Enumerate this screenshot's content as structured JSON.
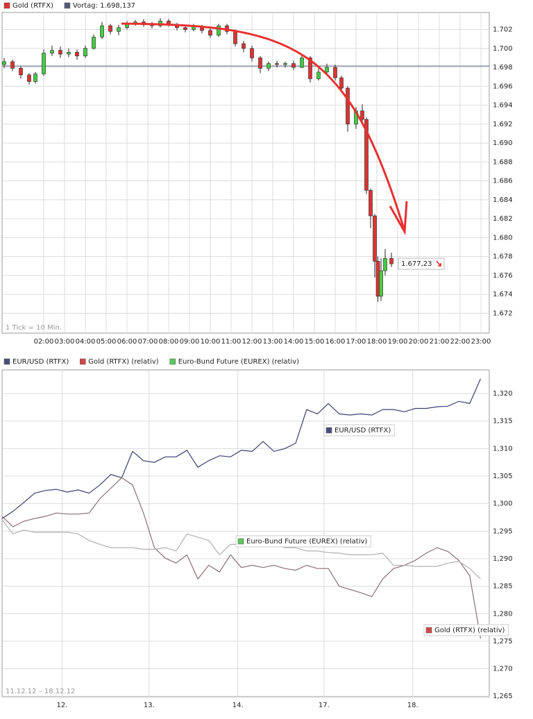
{
  "chart_data": [
    {
      "type": "candlestick",
      "series": [
        {
          "name": "Gold (RTFX)",
          "color": "#dd3333",
          "up_color": "#44cc44",
          "down_color": "#dd3333",
          "x": [
            0.1,
            0.5,
            0.9,
            1.3,
            1.6,
            2.0,
            2.4,
            2.8,
            3.2,
            3.6,
            4.0,
            4.4,
            4.8,
            5.2,
            5.6,
            6.0,
            6.4,
            6.8,
            7.2,
            7.6,
            8.0,
            8.4,
            8.8,
            9.2,
            9.6,
            10.0,
            10.4,
            10.8,
            11.2,
            11.6,
            12.0,
            12.4,
            12.8,
            13.2,
            13.6,
            14.0,
            14.4,
            14.8,
            15.2,
            15.6,
            16.0,
            16.3,
            16.6,
            17.0,
            17.3,
            17.5,
            17.7,
            17.9,
            18.05,
            18.2,
            18.4,
            18.7
          ],
          "open": [
            1698.3,
            1698.6,
            1697.9,
            1697.2,
            1696.5,
            1697.3,
            1699.5,
            1699.8,
            1699.4,
            1699.6,
            1699.2,
            1700.0,
            1701.2,
            1702.4,
            1701.8,
            1702.2,
            1702.6,
            1702.8,
            1702.5,
            1702.4,
            1702.9,
            1702.5,
            1702.2,
            1702.0,
            1702.3,
            1701.9,
            1701.4,
            1702.4,
            1701.8,
            1700.5,
            1700.0,
            1699.0,
            1697.9,
            1698.4,
            1698.3,
            1698.4,
            1698.0,
            1699.0,
            1696.8,
            1697.5,
            1698.0,
            1696.9,
            1695.8,
            1692.0,
            1693.4,
            1692.5,
            1685.0,
            1682.3,
            1677.5,
            1673.8,
            1676.5,
            1677.8
          ],
          "high": [
            1699.0,
            1698.8,
            1698.1,
            1697.4,
            1697.5,
            1699.9,
            1700.3,
            1700.2,
            1700.0,
            1699.9,
            1700.3,
            1701.5,
            1702.8,
            1702.6,
            1702.5,
            1702.9,
            1703.0,
            1703.1,
            1702.8,
            1703.2,
            1703.1,
            1702.7,
            1702.5,
            1702.6,
            1702.5,
            1702.2,
            1702.6,
            1702.6,
            1702.0,
            1700.8,
            1700.3,
            1699.2,
            1698.6,
            1698.7,
            1698.6,
            1698.7,
            1699.3,
            1699.2,
            1697.9,
            1698.4,
            1698.3,
            1697.1,
            1696.0,
            1693.8,
            1694.1,
            1692.7,
            1685.2,
            1682.5,
            1678.0,
            1677.8,
            1678.8,
            1678.4
          ],
          "low": [
            1697.9,
            1697.6,
            1696.8,
            1696.2,
            1696.3,
            1697.1,
            1699.2,
            1699.0,
            1699.1,
            1698.8,
            1699.0,
            1699.9,
            1701.0,
            1701.5,
            1701.4,
            1702.0,
            1702.4,
            1702.3,
            1702.1,
            1702.2,
            1702.3,
            1701.9,
            1701.7,
            1701.8,
            1701.6,
            1701.1,
            1701.2,
            1701.5,
            1700.2,
            1699.6,
            1698.6,
            1697.4,
            1697.6,
            1698.0,
            1698.0,
            1697.7,
            1697.9,
            1696.4,
            1696.6,
            1697.2,
            1696.6,
            1695.5,
            1691.2,
            1691.5,
            1692.2,
            1684.6,
            1681.0,
            1675.8,
            1673.2,
            1673.3,
            1676.0,
            1676.9
          ],
          "close": [
            1698.6,
            1697.9,
            1697.2,
            1696.5,
            1697.3,
            1699.5,
            1699.8,
            1699.4,
            1699.6,
            1699.2,
            1700.0,
            1701.2,
            1702.4,
            1701.8,
            1702.2,
            1702.6,
            1702.8,
            1702.5,
            1702.4,
            1702.9,
            1702.5,
            1702.2,
            1702.0,
            1702.3,
            1701.9,
            1701.4,
            1702.4,
            1701.8,
            1700.5,
            1700.0,
            1699.0,
            1697.9,
            1698.4,
            1698.3,
            1698.4,
            1698.0,
            1699.0,
            1696.8,
            1697.5,
            1698.0,
            1696.9,
            1695.8,
            1692.0,
            1693.4,
            1692.5,
            1685.0,
            1682.3,
            1677.5,
            1673.8,
            1676.5,
            1677.8,
            1677.23
          ],
          "last_value_label": "1.677,23"
        }
      ],
      "reference": {
        "label": "Vortag: 1.698,137",
        "value": 1698.137,
        "color": "#555a7a"
      },
      "note": "1 Tick = 10 Min.",
      "xlim": [
        0,
        23.4
      ],
      "xticks": [
        {
          "value": 2,
          "label": "02:00"
        },
        {
          "value": 3,
          "label": "03:00"
        },
        {
          "value": 4,
          "label": "04:00"
        },
        {
          "value": 5,
          "label": "05:00"
        },
        {
          "value": 6,
          "label": "06:00"
        },
        {
          "value": 7,
          "label": "07:00"
        },
        {
          "value": 8,
          "label": "08:00"
        },
        {
          "value": 9,
          "label": "09:00"
        },
        {
          "value": 10,
          "label": "10:00"
        },
        {
          "value": 11,
          "label": "11:00"
        },
        {
          "value": 12,
          "label": "12:00"
        },
        {
          "value": 13,
          "label": "13:00"
        },
        {
          "value": 14,
          "label": "14:00"
        },
        {
          "value": 15,
          "label": "15:00"
        },
        {
          "value": 16,
          "label": "16:00"
        },
        {
          "value": 17,
          "label": "17:00"
        },
        {
          "value": 18,
          "label": "18:00"
        },
        {
          "value": 19,
          "label": "19:00"
        },
        {
          "value": 20,
          "label": "20:00"
        },
        {
          "value": 21,
          "label": "21:00"
        },
        {
          "value": 22,
          "label": "22:00"
        },
        {
          "value": 23,
          "label": "23:00"
        }
      ],
      "ylim": [
        1669.9,
        1703.8
      ],
      "yticks": [
        {
          "value": 1672,
          "label": "1.672"
        },
        {
          "value": 1674,
          "label": "1.674"
        },
        {
          "value": 1676,
          "label": "1.676"
        },
        {
          "value": 1678,
          "label": "1.678"
        },
        {
          "value": 1680,
          "label": "1.680"
        },
        {
          "value": 1682,
          "label": "1.682"
        },
        {
          "value": 1684,
          "label": "1.684"
        },
        {
          "value": 1686,
          "label": "1.686"
        },
        {
          "value": 1688,
          "label": "1.688"
        },
        {
          "value": 1690,
          "label": "1.690"
        },
        {
          "value": 1692,
          "label": "1.692"
        },
        {
          "value": 1694,
          "label": "1.694"
        },
        {
          "value": 1696,
          "label": "1.696"
        },
        {
          "value": 1698,
          "label": "1.698"
        },
        {
          "value": 1700,
          "label": "1.700"
        },
        {
          "value": 1702,
          "label": "1.702"
        }
      ],
      "grid": true
    },
    {
      "type": "line",
      "x": [
        0,
        0.125,
        0.25,
        0.375,
        0.5,
        0.625,
        0.75,
        0.875,
        1,
        1.125,
        1.25,
        1.375,
        1.5,
        1.625,
        1.75,
        1.875,
        2,
        2.125,
        2.25,
        2.375,
        2.5,
        2.625,
        2.75,
        2.875,
        3,
        3.125,
        3.25,
        3.375,
        3.5,
        3.625,
        3.75,
        3.875,
        4,
        4.125,
        4.25,
        4.375,
        4.5,
        4.625,
        4.75,
        4.875,
        5,
        5.125,
        5.25,
        5.375,
        5.5
      ],
      "series": [
        {
          "name": "EUR/USD (RTFX)",
          "color": "#3b3f6e",
          "legend_color": "#4a4f7a",
          "values": [
            1.2973,
            1.2986,
            1.3002,
            1.3019,
            1.3024,
            1.3026,
            1.3021,
            1.3025,
            1.3019,
            1.3034,
            1.3053,
            1.3047,
            1.3095,
            1.3078,
            1.3075,
            1.3085,
            1.3085,
            1.3097,
            1.3066,
            1.3078,
            1.3087,
            1.3085,
            1.3097,
            1.3095,
            1.3113,
            1.3095,
            1.31,
            1.311,
            1.3171,
            1.3163,
            1.3182,
            1.3163,
            1.3161,
            1.3163,
            1.3161,
            1.3171,
            1.3171,
            1.3167,
            1.3173,
            1.3173,
            1.3176,
            1.3177,
            1.3186,
            1.3182,
            1.3227
          ]
        },
        {
          "name": "Gold (RTFX) (relativ)",
          "color": "#8b6f73",
          "legend_color": "#d04848",
          "values": [
            1.2977,
            1.2958,
            1.2968,
            1.2973,
            1.2977,
            1.2983,
            1.2981,
            1.2981,
            1.2983,
            1.3009,
            1.3028,
            1.3047,
            1.3034,
            1.2983,
            1.292,
            1.2901,
            1.2892,
            1.2907,
            1.2863,
            1.2888,
            1.2876,
            1.2907,
            1.2884,
            1.2888,
            1.2884,
            1.2888,
            1.2882,
            1.2879,
            1.2888,
            1.2882,
            1.2882,
            1.285,
            1.2844,
            1.2838,
            1.2831,
            1.2863,
            1.2882,
            1.2888,
            1.2897,
            1.291,
            1.292,
            1.2913,
            1.2897,
            1.2869,
            1.2755
          ]
        },
        {
          "name": "Euro-Bund Future (EUREX) (relativ)",
          "color": "#b0b0b0",
          "legend_color": "#5cc85c",
          "values": [
            1.2971,
            1.2945,
            1.2952,
            1.2948,
            1.2948,
            1.2948,
            1.2948,
            1.2945,
            1.2933,
            1.2926,
            1.292,
            1.292,
            1.292,
            1.2917,
            1.2917,
            1.292,
            1.2914,
            1.2945,
            1.2939,
            1.2933,
            1.2907,
            1.2926,
            1.2926,
            1.2926,
            1.2926,
            1.2926,
            1.292,
            1.292,
            1.2914,
            1.2914,
            1.2911,
            1.291,
            1.2907,
            1.2907,
            1.2907,
            1.291,
            1.2888,
            1.2888,
            1.2886,
            1.2886,
            1.2886,
            1.2892,
            1.2895,
            1.2882,
            1.2863
          ]
        }
      ],
      "note": "11.12.12 – 18.12.12",
      "xlim": [
        0,
        5.6
      ],
      "xticks": [
        {
          "value": 0.69,
          "label": "12."
        },
        {
          "value": 1.69,
          "label": "13."
        },
        {
          "value": 2.71,
          "label": "14."
        },
        {
          "value": 3.7,
          "label": "17."
        },
        {
          "value": 4.72,
          "label": "18."
        }
      ],
      "ylim": [
        1.2649,
        1.3243
      ],
      "yticks": [
        {
          "value": 1.265,
          "label": "1,265"
        },
        {
          "value": 1.27,
          "label": "1,270"
        },
        {
          "value": 1.275,
          "label": "1,275"
        },
        {
          "value": 1.28,
          "label": "1,280"
        },
        {
          "value": 1.285,
          "label": "1,285"
        },
        {
          "value": 1.29,
          "label": "1,290"
        },
        {
          "value": 1.295,
          "label": "1,295"
        },
        {
          "value": 1.3,
          "label": "1,300"
        },
        {
          "value": 1.305,
          "label": "1,305"
        },
        {
          "value": 1.31,
          "label": "1,310"
        },
        {
          "value": 1.315,
          "label": "1,315"
        },
        {
          "value": 1.32,
          "label": "1,320"
        }
      ],
      "grid": true
    }
  ]
}
